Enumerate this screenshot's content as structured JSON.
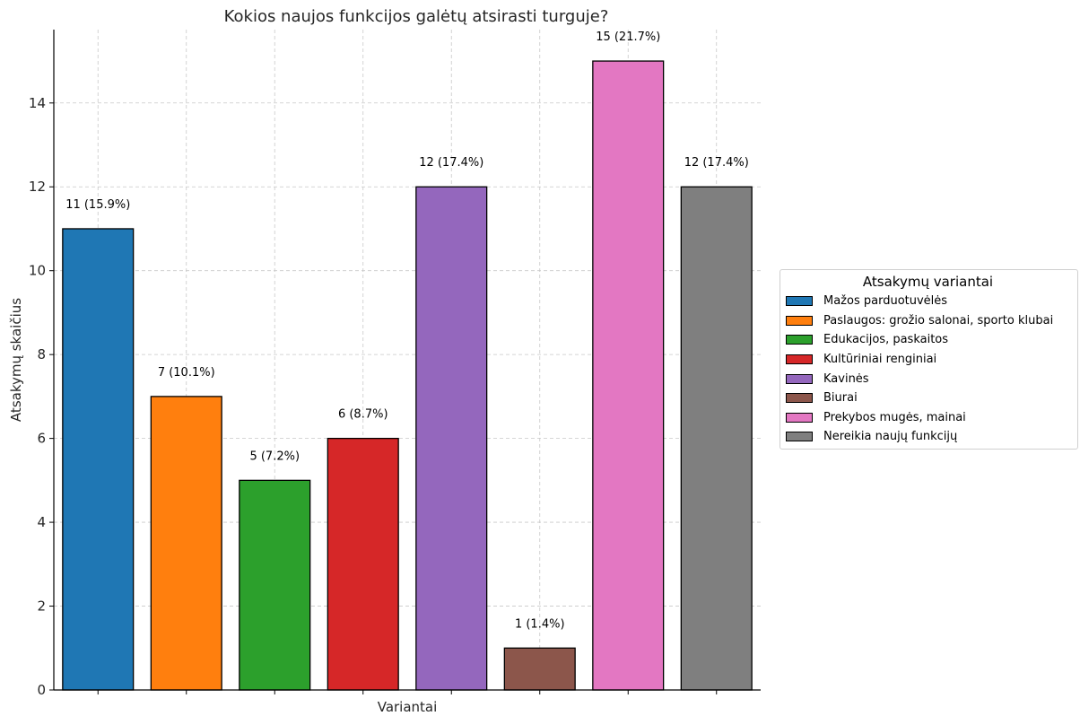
{
  "chart_data": {
    "type": "bar",
    "title": "Kokios naujos funkcijos galėtų atsirasti turguje?",
    "xlabel": "Variantai",
    "ylabel": "Atsakymų skaičius",
    "ylim": [
      0,
      15.75
    ],
    "yticks": [
      0,
      2,
      4,
      6,
      8,
      10,
      12,
      14
    ],
    "grid": true,
    "legend_title": "Atsakymų variantai",
    "legend_position": "right",
    "categories": [
      "Mažos parduotuvėlės",
      "Paslaugos: grožio salonai, sporto klubai",
      "Edukacijos, paskaitos",
      "Kultūriniai renginiai",
      "Kavinės",
      "Biurai",
      "Prekybos mugės, mainai",
      "Nereikia naujų funkcijų"
    ],
    "values": [
      11,
      7,
      5,
      6,
      12,
      1,
      15,
      12
    ],
    "data_labels": [
      "11 (15.9%)",
      "7 (10.1%)",
      "5 (7.2%)",
      "6 (8.7%)",
      "12 (17.4%)",
      "1 (1.4%)",
      "15 (21.7%)",
      "12 (17.4%)"
    ],
    "colors": [
      "#1f77b4",
      "#ff7f0e",
      "#2ca02c",
      "#d62728",
      "#9467bd",
      "#8c564b",
      "#e377c2",
      "#7f7f7f"
    ]
  }
}
